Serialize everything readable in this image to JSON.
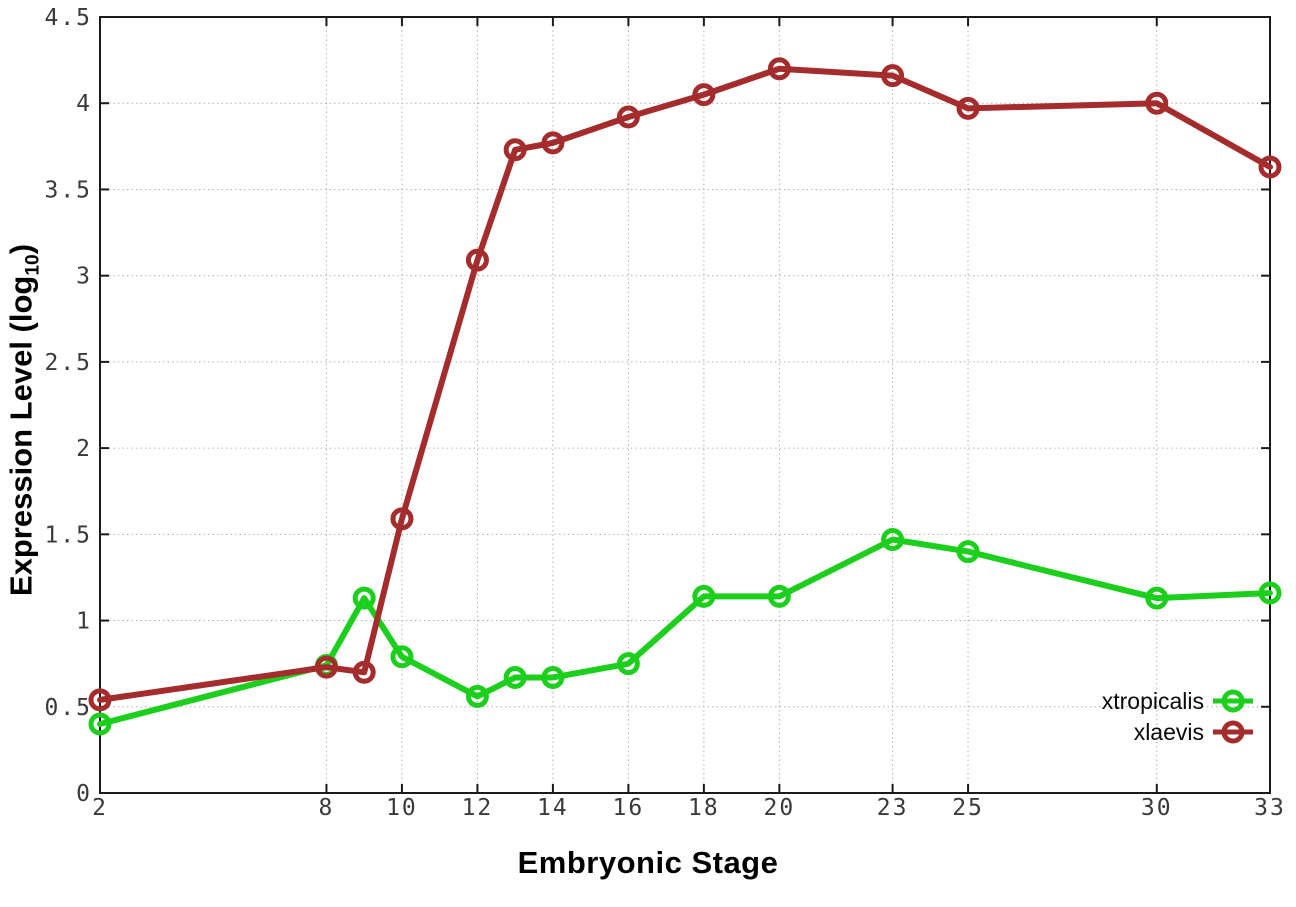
{
  "chart_data": {
    "type": "line",
    "title": "",
    "xlabel": "Embryonic Stage",
    "ylabel_prefix": "Expression Level (log",
    "ylabel_sub": "10",
    "ylabel_suffix": ")",
    "xlim": [
      2,
      33
    ],
    "ylim": [
      0,
      4.5
    ],
    "x_ticks": [
      2,
      8,
      10,
      12,
      14,
      16,
      18,
      20,
      23,
      25,
      30,
      33
    ],
    "x_tick_labels": [
      "2",
      "8",
      "10",
      "12",
      "14",
      "16",
      "18",
      "20",
      "23",
      "25",
      "30",
      "33"
    ],
    "y_ticks": [
      0,
      0.5,
      1,
      1.5,
      2,
      2.5,
      3,
      3.5,
      4,
      4.5
    ],
    "y_tick_labels": [
      "0",
      "0.5",
      "1",
      "1.5",
      "2",
      "2.5",
      "3",
      "3.5",
      "4",
      "4.5"
    ],
    "grid": true,
    "legend_position": "inside-bottom-right",
    "series": [
      {
        "name": "xtropicalis",
        "color": "#1dcf1d",
        "x": [
          2,
          8,
          9,
          10,
          12,
          13,
          14,
          16,
          18,
          20,
          23,
          25,
          30,
          33
        ],
        "values": [
          0.4,
          0.74,
          1.13,
          0.79,
          0.56,
          0.67,
          0.67,
          0.75,
          1.14,
          1.14,
          1.47,
          1.4,
          1.13,
          1.16
        ]
      },
      {
        "name": "xlaevis",
        "color": "#a52c2c",
        "x": [
          2,
          8,
          9,
          10,
          12,
          13,
          14,
          16,
          18,
          20,
          23,
          25,
          30,
          33
        ],
        "values": [
          0.54,
          0.73,
          0.7,
          1.59,
          3.09,
          3.73,
          3.77,
          3.92,
          4.05,
          4.2,
          4.16,
          3.97,
          4.0,
          3.63
        ]
      }
    ],
    "style": {
      "grid_color": "#b0b0b0",
      "border_color": "#1a1a1a",
      "tick_label_color": "#3a3a3a",
      "line_width": 6,
      "marker_radius": 9,
      "marker_stroke": 5
    }
  }
}
